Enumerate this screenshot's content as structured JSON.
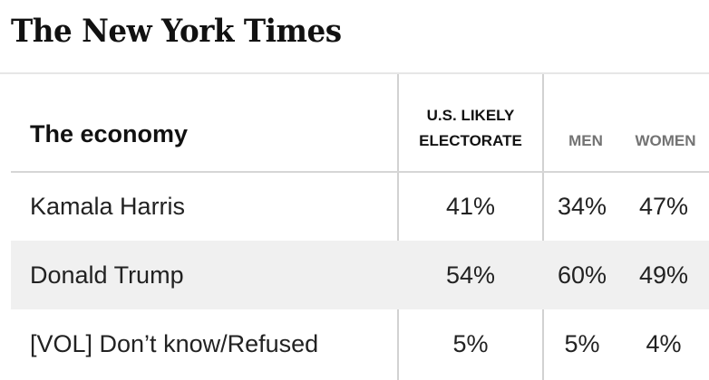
{
  "masthead": {
    "logo_text": "The New York Times"
  },
  "table": {
    "header_label": "The economy",
    "columns": {
      "electorate": "U.S. LIKELY ELECTORATE",
      "men": "MEN",
      "women": "WOMEN"
    },
    "rows": [
      {
        "label": "Kamala Harris",
        "electorate": "41%",
        "men": "34%",
        "women": "47%"
      },
      {
        "label": "Donald Trump",
        "electorate": "54%",
        "men": "60%",
        "women": "49%"
      },
      {
        "label": "[VOL] Don’t know/Refused",
        "electorate": "5%",
        "men": "5%",
        "women": "4%"
      }
    ]
  },
  "colors": {
    "shaded_row": "#f0f0f0",
    "secondary_header": "#737373",
    "rule": "#d2d2d2"
  }
}
